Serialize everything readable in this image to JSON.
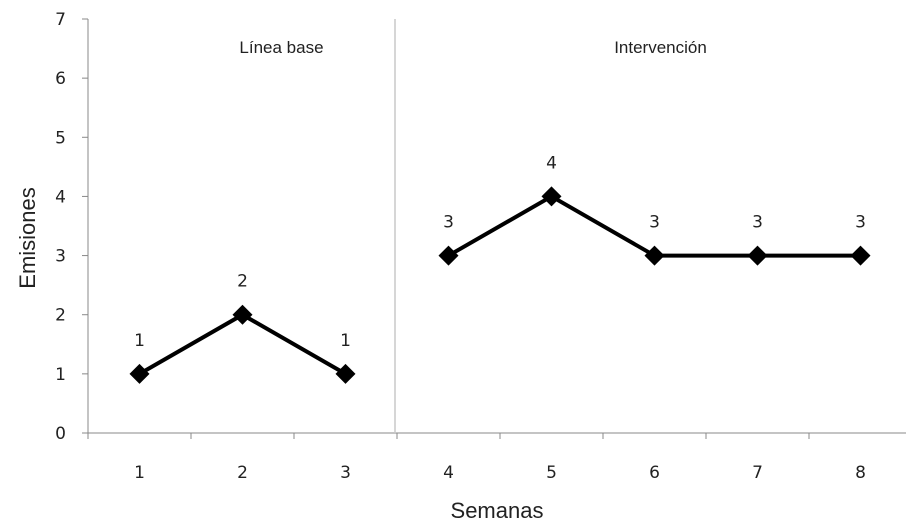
{
  "chart_data": {
    "type": "line",
    "title": "",
    "xlabel": "Semanas",
    "ylabel": "Emisiones",
    "x": [
      1,
      2,
      3,
      4,
      5,
      6,
      7,
      8
    ],
    "categories": [
      "1",
      "2",
      "3",
      "4",
      "5",
      "6",
      "7",
      "8"
    ],
    "ylim": [
      0,
      7
    ],
    "yticks": [
      0,
      1,
      2,
      3,
      4,
      5,
      6,
      7
    ],
    "grid": false,
    "legend": "none",
    "phases": [
      {
        "label": "Línea base",
        "x": [
          1,
          2,
          3
        ]
      },
      {
        "label": "Intervención",
        "x": [
          4,
          5,
          6,
          7,
          8
        ]
      }
    ],
    "series": [
      {
        "values": [
          1,
          2,
          1,
          3,
          4,
          3,
          3,
          3
        ],
        "data_labels": [
          "1",
          "2",
          "1",
          "3",
          "4",
          "3",
          "3",
          "3"
        ]
      }
    ],
    "colors": {
      "line": "#000000",
      "axis": "#888888",
      "phase_divider": "#c8c8c8"
    },
    "marker": "diamond"
  }
}
